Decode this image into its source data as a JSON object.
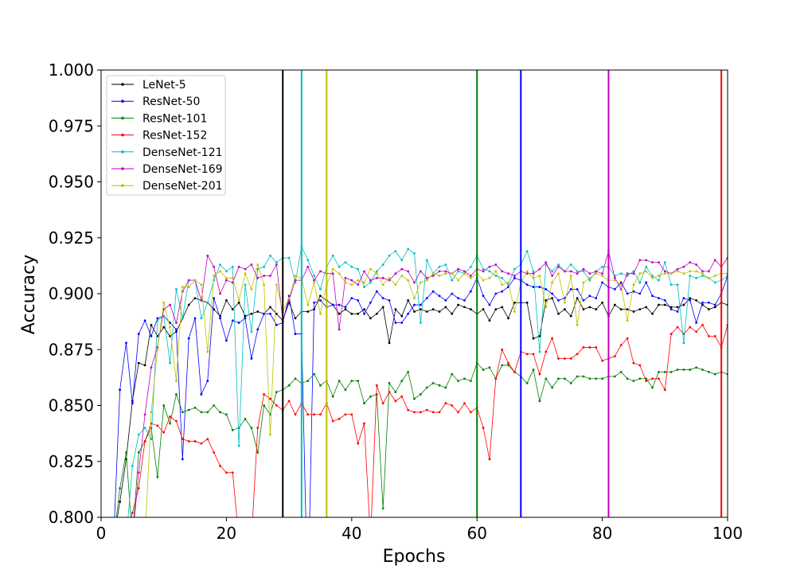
{
  "chart_data": {
    "type": "line",
    "title": "",
    "xlabel": "Epochs",
    "ylabel": "Accuracy",
    "xlim": [
      0,
      100
    ],
    "ylim": [
      0.8,
      1.0
    ],
    "x_ticks": [
      "0",
      "20",
      "40",
      "60",
      "80",
      "100"
    ],
    "y_ticks": [
      "0.800",
      "0.825",
      "0.850",
      "0.875",
      "0.900",
      "0.925",
      "0.950",
      "0.975",
      "1.000"
    ],
    "grid": false,
    "legend_position": "top-left",
    "x": [
      1,
      2,
      3,
      4,
      5,
      6,
      7,
      8,
      9,
      10,
      11,
      12,
      13,
      14,
      15,
      16,
      17,
      18,
      19,
      20,
      21,
      22,
      23,
      24,
      25,
      26,
      27,
      28,
      29,
      30,
      31,
      32,
      33,
      34,
      35,
      36,
      37,
      38,
      39,
      40,
      41,
      42,
      43,
      44,
      45,
      46,
      47,
      48,
      49,
      50,
      51,
      52,
      53,
      54,
      55,
      56,
      57,
      58,
      59,
      60,
      61,
      62,
      63,
      64,
      65,
      66,
      67,
      68,
      69,
      70,
      71,
      72,
      73,
      74,
      75,
      76,
      77,
      78,
      79,
      80,
      81,
      82,
      83,
      84,
      85,
      86,
      87,
      88,
      89,
      90,
      91,
      92,
      93,
      94,
      95,
      96,
      97,
      98,
      99,
      100
    ],
    "series": [
      {
        "name": "LeNet-5",
        "color": "#000000",
        "values": [
          0.79,
          0.79,
          0.807,
          0.826,
          0.852,
          0.869,
          0.868,
          0.886,
          0.881,
          0.885,
          0.881,
          0.883,
          0.889,
          0.895,
          0.898,
          0.897,
          0.896,
          0.893,
          0.89,
          0.897,
          0.893,
          0.896,
          0.89,
          0.891,
          0.892,
          0.891,
          0.894,
          0.891,
          0.888,
          0.896,
          0.889,
          0.892,
          0.892,
          0.893,
          0.899,
          0.897,
          0.895,
          0.891,
          0.893,
          0.891,
          0.891,
          0.893,
          0.889,
          0.891,
          0.894,
          0.878,
          0.893,
          0.89,
          0.897,
          0.892,
          0.893,
          0.892,
          0.893,
          0.892,
          0.894,
          0.891,
          0.895,
          0.894,
          0.893,
          0.891,
          0.893,
          0.888,
          0.893,
          0.894,
          0.889,
          0.896,
          0.896,
          0.896,
          0.88,
          0.881,
          0.897,
          0.898,
          0.891,
          0.893,
          0.89,
          0.898,
          0.893,
          0.894,
          0.893,
          0.896,
          0.89,
          0.895,
          0.893,
          0.893,
          0.892,
          0.893,
          0.894,
          0.891,
          0.895,
          0.895,
          0.894,
          0.894,
          0.895,
          0.898,
          0.897,
          0.895,
          0.893,
          0.894,
          0.896,
          0.895
        ]
      },
      {
        "name": "ResNet-50",
        "color": "#0000ff",
        "values": [
          0.79,
          0.79,
          0.857,
          0.878,
          0.851,
          0.882,
          0.888,
          0.881,
          0.889,
          0.89,
          0.887,
          0.884,
          0.826,
          0.88,
          0.889,
          0.855,
          0.861,
          0.898,
          0.889,
          0.879,
          0.888,
          0.887,
          0.889,
          0.871,
          0.884,
          0.891,
          0.891,
          0.886,
          0.887,
          0.899,
          0.882,
          0.882,
          0.76,
          0.896,
          0.897,
          0.894,
          0.895,
          0.895,
          0.894,
          0.898,
          0.897,
          0.891,
          0.896,
          0.901,
          0.898,
          0.897,
          0.887,
          0.887,
          0.891,
          0.895,
          0.895,
          0.898,
          0.901,
          0.899,
          0.897,
          0.9,
          0.898,
          0.897,
          0.901,
          0.907,
          0.899,
          0.895,
          0.9,
          0.901,
          0.903,
          0.907,
          0.906,
          0.904,
          0.903,
          0.903,
          0.902,
          0.9,
          0.897,
          0.898,
          0.902,
          0.902,
          0.897,
          0.899,
          0.898,
          0.905,
          0.903,
          0.902,
          0.905,
          0.9,
          0.901,
          0.9,
          0.905,
          0.899,
          0.898,
          0.897,
          0.893,
          0.892,
          0.898,
          0.897,
          0.887,
          0.896,
          0.896,
          0.895,
          0.9,
          0.908
        ]
      },
      {
        "name": "ResNet-101",
        "color": "#008000",
        "values": [
          0.79,
          0.79,
          0.813,
          0.829,
          0.79,
          0.829,
          0.834,
          0.84,
          0.818,
          0.85,
          0.842,
          0.855,
          0.847,
          0.848,
          0.849,
          0.847,
          0.847,
          0.85,
          0.847,
          0.846,
          0.839,
          0.84,
          0.844,
          0.84,
          0.829,
          0.85,
          0.846,
          0.856,
          0.857,
          0.859,
          0.862,
          0.86,
          0.861,
          0.864,
          0.859,
          0.861,
          0.854,
          0.861,
          0.857,
          0.861,
          0.861,
          0.851,
          0.854,
          0.855,
          0.804,
          0.86,
          0.856,
          0.861,
          0.865,
          0.853,
          0.855,
          0.858,
          0.86,
          0.859,
          0.858,
          0.864,
          0.861,
          0.862,
          0.861,
          0.869,
          0.866,
          0.867,
          0.862,
          0.868,
          0.868,
          0.865,
          0.863,
          0.86,
          0.866,
          0.852,
          0.862,
          0.858,
          0.862,
          0.862,
          0.86,
          0.863,
          0.863,
          0.862,
          0.862,
          0.862,
          0.863,
          0.863,
          0.865,
          0.862,
          0.861,
          0.862,
          0.862,
          0.858,
          0.865,
          0.865,
          0.865,
          0.866,
          0.866,
          0.866,
          0.867,
          0.866,
          0.865,
          0.864,
          0.865,
          0.864
        ]
      },
      {
        "name": "ResNet-152",
        "color": "#ff0000",
        "values": [
          0.79,
          0.79,
          0.79,
          0.79,
          0.802,
          0.813,
          0.834,
          0.842,
          0.841,
          0.838,
          0.845,
          0.843,
          0.835,
          0.834,
          0.834,
          0.833,
          0.835,
          0.829,
          0.823,
          0.82,
          0.82,
          0.79,
          0.79,
          0.79,
          0.84,
          0.855,
          0.853,
          0.85,
          0.848,
          0.852,
          0.846,
          0.851,
          0.846,
          0.846,
          0.846,
          0.851,
          0.843,
          0.844,
          0.846,
          0.846,
          0.833,
          0.842,
          0.79,
          0.859,
          0.851,
          0.856,
          0.852,
          0.854,
          0.848,
          0.847,
          0.847,
          0.848,
          0.847,
          0.847,
          0.851,
          0.85,
          0.847,
          0.851,
          0.847,
          0.849,
          0.84,
          0.826,
          0.862,
          0.875,
          0.869,
          0.865,
          0.874,
          0.873,
          0.873,
          0.864,
          0.874,
          0.88,
          0.871,
          0.871,
          0.871,
          0.873,
          0.876,
          0.876,
          0.876,
          0.87,
          0.871,
          0.872,
          0.877,
          0.88,
          0.869,
          0.868,
          0.861,
          0.862,
          0.862,
          0.857,
          0.882,
          0.885,
          0.882,
          0.885,
          0.883,
          0.886,
          0.881,
          0.881,
          0.876,
          0.886
        ]
      },
      {
        "name": "DenseNet-121",
        "color": "#00bfbf",
        "values": [
          0.79,
          0.79,
          0.79,
          0.79,
          0.823,
          0.837,
          0.84,
          0.835,
          0.888,
          0.89,
          0.869,
          0.902,
          0.889,
          0.906,
          0.906,
          0.889,
          0.896,
          0.906,
          0.913,
          0.91,
          0.912,
          0.832,
          0.904,
          0.883,
          0.911,
          0.912,
          0.917,
          0.914,
          0.916,
          0.916,
          0.905,
          0.921,
          0.915,
          0.908,
          0.902,
          0.912,
          0.917,
          0.912,
          0.914,
          0.912,
          0.911,
          0.903,
          0.905,
          0.91,
          0.913,
          0.917,
          0.919,
          0.915,
          0.92,
          0.918,
          0.887,
          0.915,
          0.909,
          0.912,
          0.913,
          0.906,
          0.91,
          0.909,
          0.912,
          0.917,
          0.911,
          0.91,
          0.908,
          0.907,
          0.904,
          0.911,
          0.913,
          0.919,
          0.91,
          0.874,
          0.913,
          0.91,
          0.913,
          0.91,
          0.913,
          0.91,
          0.91,
          0.906,
          0.91,
          0.912,
          0.912,
          0.908,
          0.909,
          0.908,
          0.91,
          0.905,
          0.912,
          0.908,
          0.906,
          0.914,
          0.904,
          0.904,
          0.878,
          0.908,
          0.907,
          0.908,
          0.907,
          0.905,
          0.906,
          0.908
        ]
      },
      {
        "name": "DenseNet-169",
        "color": "#bf00bf",
        "values": [
          0.79,
          0.79,
          0.79,
          0.79,
          0.79,
          0.82,
          0.846,
          0.867,
          0.876,
          0.893,
          0.895,
          0.887,
          0.901,
          0.906,
          0.906,
          0.897,
          0.917,
          0.912,
          0.9,
          0.906,
          0.905,
          0.912,
          0.911,
          0.913,
          0.907,
          0.908,
          0.908,
          0.913,
          0.888,
          0.897,
          0.906,
          0.906,
          0.912,
          0.906,
          0.91,
          0.909,
          0.909,
          0.884,
          0.907,
          0.906,
          0.904,
          0.91,
          0.906,
          0.907,
          0.907,
          0.906,
          0.909,
          0.911,
          0.91,
          0.905,
          0.91,
          0.907,
          0.908,
          0.91,
          0.91,
          0.909,
          0.911,
          0.91,
          0.908,
          0.911,
          0.91,
          0.912,
          0.913,
          0.91,
          0.909,
          0.908,
          0.91,
          0.909,
          0.909,
          0.911,
          0.914,
          0.908,
          0.912,
          0.91,
          0.91,
          0.909,
          0.911,
          0.909,
          0.91,
          0.909,
          0.919,
          0.907,
          0.902,
          0.909,
          0.909,
          0.915,
          0.915,
          0.914,
          0.914,
          0.91,
          0.909,
          0.911,
          0.912,
          0.914,
          0.913,
          0.91,
          0.91,
          0.915,
          0.912,
          0.916
        ]
      },
      {
        "name": "DenseNet-201",
        "color": "#bfbf00",
        "values": [
          0.79,
          0.79,
          0.79,
          0.79,
          0.79,
          0.79,
          0.79,
          0.847,
          0.875,
          0.896,
          0.885,
          0.861,
          0.903,
          0.903,
          0.906,
          0.904,
          0.874,
          0.908,
          0.91,
          0.907,
          0.907,
          0.897,
          0.909,
          0.902,
          0.913,
          0.904,
          0.837,
          0.904,
          0.892,
          0.898,
          0.908,
          0.907,
          0.895,
          0.905,
          0.891,
          0.904,
          0.911,
          0.909,
          0.905,
          0.904,
          0.906,
          0.905,
          0.911,
          0.909,
          0.904,
          0.907,
          0.904,
          0.908,
          0.906,
          0.898,
          0.905,
          0.906,
          0.909,
          0.908,
          0.909,
          0.909,
          0.906,
          0.909,
          0.907,
          0.909,
          0.906,
          0.907,
          0.91,
          0.904,
          0.905,
          0.892,
          0.905,
          0.91,
          0.907,
          0.908,
          0.894,
          0.905,
          0.909,
          0.896,
          0.908,
          0.886,
          0.905,
          0.907,
          0.909,
          0.908,
          0.906,
          0.906,
          0.904,
          0.888,
          0.904,
          0.909,
          0.91,
          0.907,
          0.908,
          0.909,
          0.909,
          0.91,
          0.909,
          0.91,
          0.91,
          0.909,
          0.907,
          0.908,
          0.909,
          0.909
        ]
      }
    ],
    "vlines": [
      {
        "x": 29,
        "color": "#000000"
      },
      {
        "x": 32,
        "color": "#00bfbf"
      },
      {
        "x": 36,
        "color": "#bfbf00"
      },
      {
        "x": 60,
        "color": "#008000"
      },
      {
        "x": 67,
        "color": "#0000ff"
      },
      {
        "x": 81,
        "color": "#bf00bf"
      },
      {
        "x": 99,
        "color": "#ff0000"
      }
    ]
  }
}
